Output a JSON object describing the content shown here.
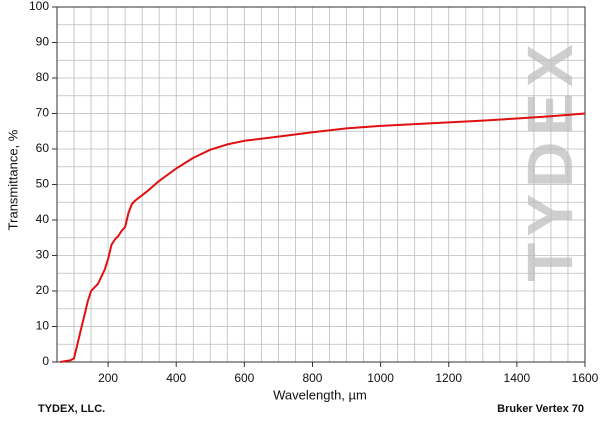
{
  "chart_data": {
    "type": "line",
    "xlabel": "Wavelength, µm",
    "ylabel": "Transmittance, %",
    "footer_left": "TYDEX, LLC.",
    "footer_right": "Bruker Vertex 70",
    "watermark": "TYDEX",
    "x": [
      60,
      90,
      100,
      110,
      120,
      130,
      140,
      150,
      160,
      170,
      180,
      190,
      200,
      210,
      220,
      230,
      240,
      250,
      260,
      270,
      280,
      300,
      320,
      350,
      400,
      450,
      500,
      550,
      600,
      700,
      800,
      900,
      1000,
      1100,
      1200,
      1300,
      1400,
      1500,
      1600
    ],
    "series": [
      {
        "name": "Transmittance",
        "color": "#e01010",
        "values": [
          0,
          0.5,
          1,
          5,
          9,
          13,
          17,
          20,
          21,
          22,
          24,
          26,
          29,
          33,
          34.5,
          35.5,
          37,
          38,
          42,
          44.5,
          45.5,
          47,
          48.5,
          51,
          54.5,
          57.5,
          59.8,
          61.3,
          62.3,
          63.5,
          64.7,
          65.8,
          66.5,
          67.0,
          67.5,
          68.0,
          68.6,
          69.2,
          70
        ]
      }
    ],
    "xlim": [
      50,
      1600
    ],
    "ylim": [
      0,
      100
    ],
    "xticks": [
      200,
      400,
      600,
      800,
      1000,
      1200,
      1400,
      1600
    ],
    "yticks": [
      0,
      10,
      20,
      30,
      40,
      50,
      60,
      70,
      80,
      90,
      100
    ],
    "xgrid": [
      100,
      150,
      200,
      250,
      300,
      350,
      400,
      450,
      500,
      550,
      600,
      650,
      700,
      750,
      800,
      850,
      900,
      950,
      1000,
      1050,
      1100,
      1150,
      1200,
      1250,
      1300,
      1350,
      1400,
      1450,
      1500,
      1550
    ],
    "ygrid": [
      5,
      10,
      15,
      20,
      25,
      30,
      35,
      40,
      45,
      50,
      55,
      60,
      65,
      70,
      75,
      80,
      85,
      90,
      95
    ],
    "grid": true
  }
}
